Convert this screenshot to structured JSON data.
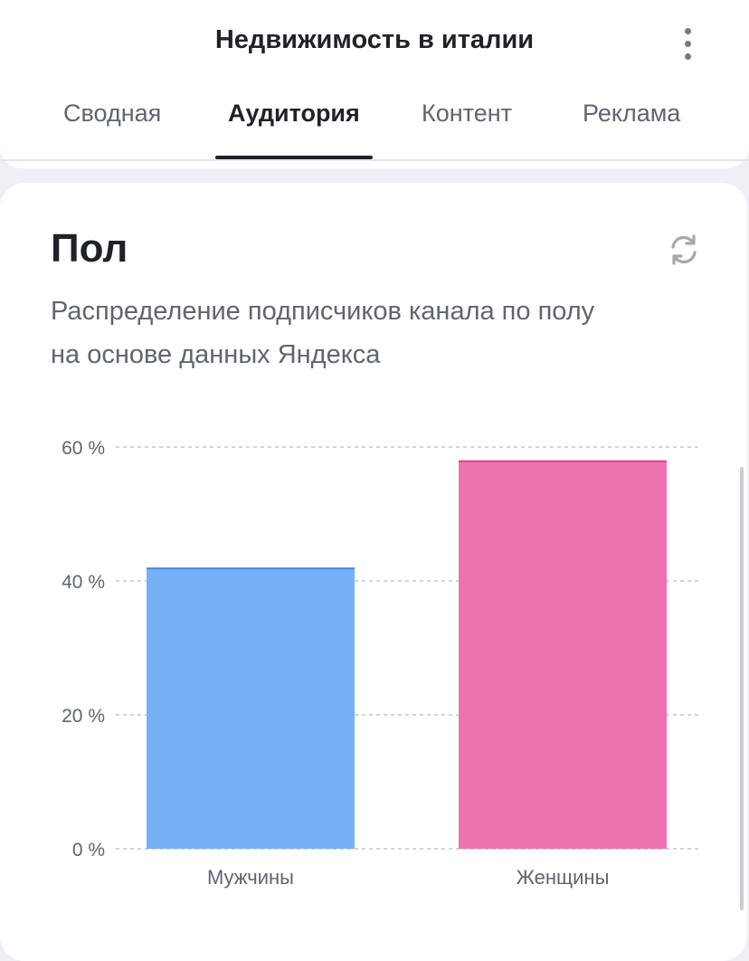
{
  "app": {
    "title": "Недвижимость в италии"
  },
  "tabs": [
    {
      "label": "Сводная",
      "active": false
    },
    {
      "label": "Аудитория",
      "active": true
    },
    {
      "label": "Контент",
      "active": false
    },
    {
      "label": "Реклама",
      "active": false
    }
  ],
  "card": {
    "title": "Пол",
    "subtitle_line1": "Распределение подписчиков канала по полу",
    "subtitle_line2": "на основе данных Яндекса",
    "refresh_icon": "refresh-icon"
  },
  "colors": {
    "male": "#78b0f7",
    "male_top": "#4a86df",
    "female": "#ec73af",
    "female_top": "#d9468f",
    "grid": "#c4c7cc",
    "tick": "#5f6570"
  },
  "chart_data": {
    "type": "bar",
    "categories": [
      "Мужчины",
      "Женщины"
    ],
    "values": [
      42,
      58
    ],
    "title": "",
    "xlabel": "",
    "ylabel": "",
    "ylim": [
      0,
      60
    ],
    "yticks": [
      0,
      20,
      40,
      60
    ],
    "ytick_labels": [
      "0 %",
      "20 %",
      "40 %",
      "60 %"
    ],
    "grid": true
  }
}
